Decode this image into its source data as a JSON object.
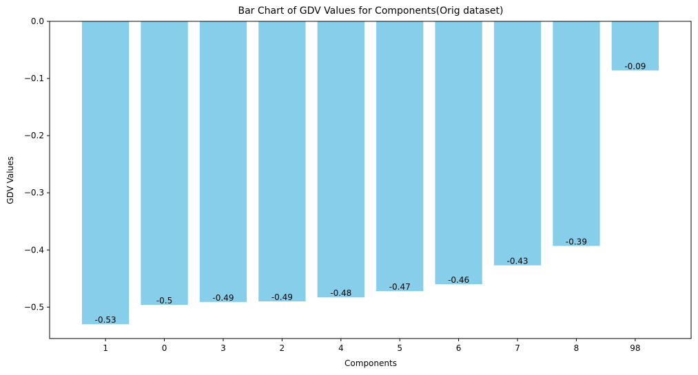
{
  "chart_data": {
    "type": "bar",
    "title": "Bar Chart of GDV Values for Components(Orig dataset)",
    "xlabel": "Components",
    "ylabel": "GDV Values",
    "categories": [
      "1",
      "0",
      "3",
      "2",
      "4",
      "5",
      "6",
      "7",
      "8",
      "98"
    ],
    "values": [
      -0.53,
      -0.496,
      -0.491,
      -0.49,
      -0.483,
      -0.472,
      -0.46,
      -0.427,
      -0.393,
      -0.086
    ],
    "data_labels": [
      "-0.53",
      "-0.5",
      "-0.49",
      "-0.49",
      "-0.48",
      "-0.47",
      "-0.46",
      "-0.43",
      "-0.39",
      "-0.09"
    ],
    "ylim": [
      -0.555,
      0
    ],
    "yticks": [
      0,
      -0.1,
      -0.2,
      -0.3,
      -0.4,
      -0.5
    ],
    "ytick_labels": [
      "0.0",
      "−0.1",
      "−0.2",
      "−0.3",
      "−0.4",
      "−0.5"
    ],
    "bar_color": "#87ceeb",
    "grid": false,
    "legend": "none"
  }
}
